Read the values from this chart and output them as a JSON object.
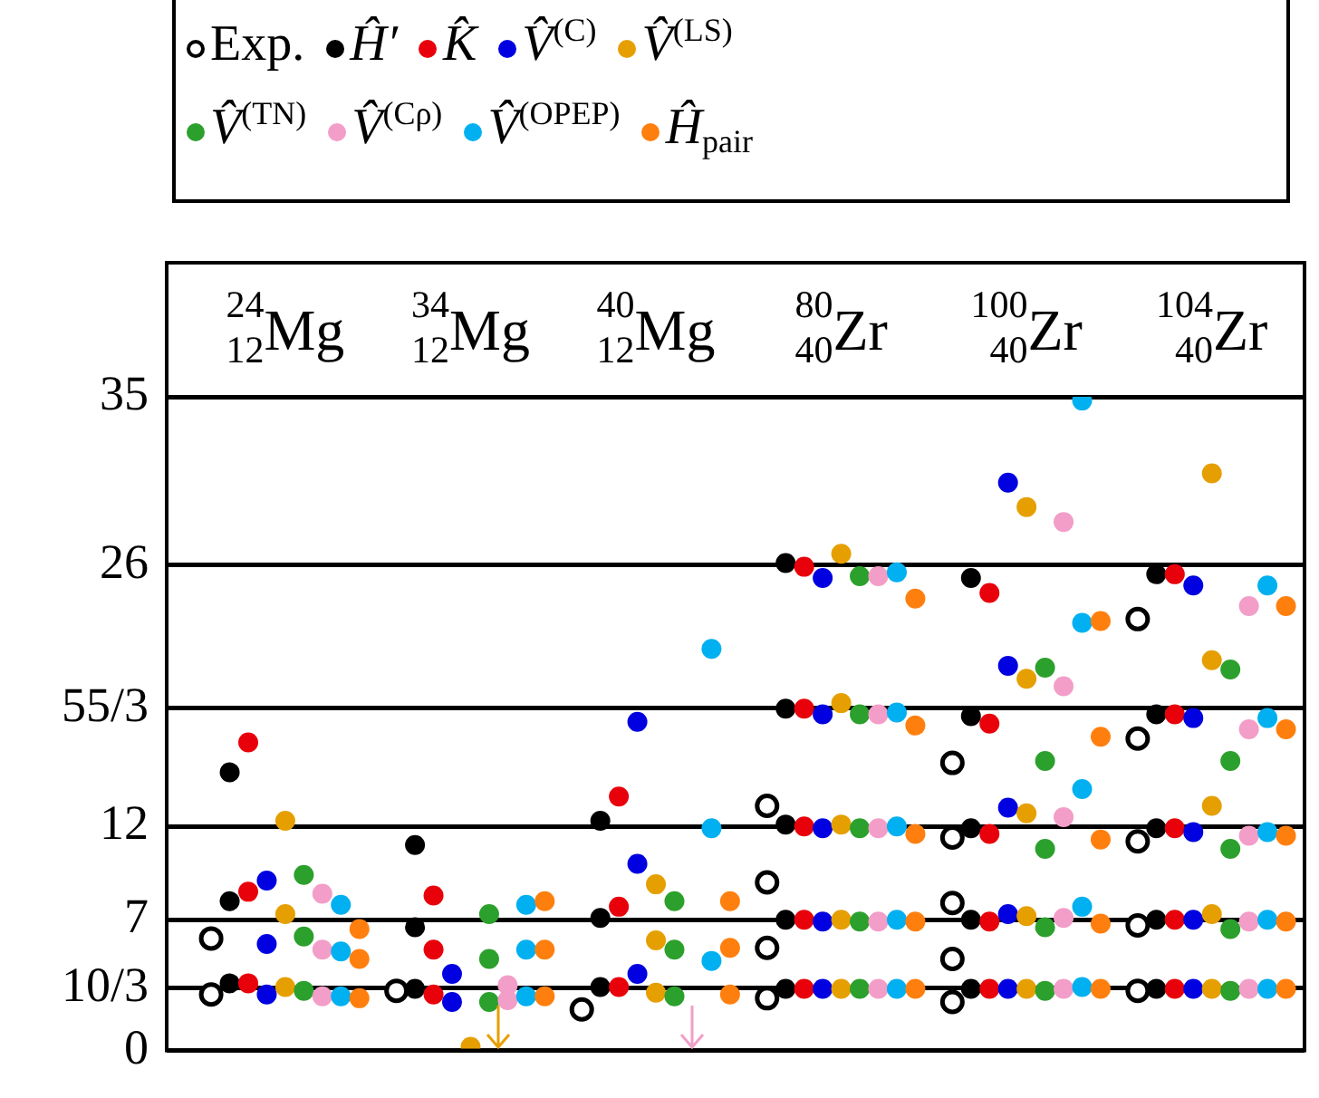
{
  "chart_data": {
    "type": "scatter",
    "legend": "top",
    "grid": "y",
    "marker": "circle",
    "categories": [
      "$^{24}$$_{12}$Mg",
      "$^{34}$$_{12}$Mg",
      "$^{40}$$_{12}$Mg",
      "$^{80}$$_{40}$Zr",
      "$^{100}$$_{40}$Zr",
      "$^{104}$$_{40}$Zr"
    ],
    "ylim": [
      0,
      35
    ],
    "yticks": [
      0,
      {
        "value": 3.333,
        "label": "10/3"
      },
      7,
      12,
      {
        "value": 18.333,
        "label": "55/3"
      },
      26,
      35
    ],
    "series": [
      {
        "name": "Exp.",
        "color": "#000000",
        "values": [
          3.0,
          3.2,
          2.2,
          2.8,
          2.6,
          3.2
        ]
      },
      {
        "color": "#000000",
        "values": [
          6.0,
          null,
          null,
          5.5,
          4.9,
          6.7
        ]
      },
      {
        "color": "#000000",
        "values": [
          null,
          null,
          null,
          9.0,
          7.9,
          11.2
        ]
      },
      {
        "color": "#000000",
        "values": [
          null,
          null,
          null,
          13.1,
          11.4,
          16.7
        ]
      },
      {
        "color": "#000000",
        "values": [
          null,
          null,
          null,
          null,
          15.4,
          23.1
        ]
      },
      {
        "name": "Ĥ′",
        "color": "#000000",
        "values": [
          3.6,
          3.3,
          3.4,
          3.3,
          3.3,
          3.3
        ]
      },
      {
        "color": "#000000",
        "values": [
          8.0,
          6.6,
          7.1,
          7.0,
          7.0,
          7.0
        ]
      },
      {
        "color": "#000000",
        "values": [
          14.9,
          11.0,
          12.3,
          12.1,
          11.9,
          11.9
        ]
      },
      {
        "color": "#000000",
        "values": [
          null,
          null,
          null,
          18.3,
          17.9,
          18.0
        ]
      },
      {
        "color": "#000000",
        "values": [
          null,
          null,
          null,
          26.1,
          25.3,
          25.5
        ]
      },
      {
        "name": "K̂",
        "color": "#e8000b",
        "values": [
          3.6,
          3.0,
          3.4,
          3.3,
          3.3,
          3.3
        ]
      },
      {
        "color": "#e8000b",
        "values": [
          8.5,
          5.4,
          7.7,
          7.0,
          6.9,
          7.0
        ]
      },
      {
        "color": "#e8000b",
        "values": [
          16.5,
          8.3,
          13.6,
          12.0,
          11.6,
          11.9
        ]
      },
      {
        "color": "#e8000b",
        "values": [
          null,
          null,
          null,
          18.3,
          17.5,
          18.0
        ]
      },
      {
        "color": "#e8000b",
        "values": [
          null,
          null,
          null,
          25.9,
          24.5,
          25.5
        ]
      },
      {
        "name": "V̂$^{(C)}$",
        "color": "#0000e0",
        "values": [
          3.0,
          2.6,
          4.1,
          3.3,
          3.3,
          3.3
        ]
      },
      {
        "color": "#0000e0",
        "values": [
          5.7,
          null,
          10.0,
          6.9,
          7.3,
          7.0
        ]
      },
      {
        "color": "#0000e0",
        "values": [
          9.1,
          4.1,
          17.6,
          11.9,
          13.0,
          11.7
        ]
      },
      {
        "color": "#0000e0",
        "values": [
          null,
          null,
          null,
          18.0,
          20.6,
          17.8
        ]
      },
      {
        "color": "#0000e0",
        "values": [
          null,
          null,
          null,
          25.3,
          30.4,
          24.9
        ]
      },
      {
        "name": "V̂$^{(LS)}$",
        "color": "#e69f00",
        "values": [
          3.4,
          0.2,
          3.1,
          3.3,
          3.3,
          3.3
        ]
      },
      {
        "color": "#e69f00",
        "values": [
          7.3,
          null,
          5.9,
          7.0,
          7.2,
          7.3
        ]
      },
      {
        "color": "#e69f00",
        "values": [
          12.3,
          null,
          8.9,
          12.1,
          12.7,
          13.1
        ]
      },
      {
        "color": "#e69f00",
        "values": [
          null,
          null,
          null,
          18.6,
          19.9,
          20.9
        ]
      },
      {
        "color": "#e69f00",
        "values": [
          null,
          null,
          null,
          26.6,
          29.1,
          30.9
        ]
      },
      {
        "name": "V̂$^{(TN)}$",
        "color": "#2ca02c",
        "values": [
          3.2,
          2.6,
          2.9,
          3.3,
          3.2,
          3.2
        ]
      },
      {
        "color": "#2ca02c",
        "values": [
          6.1,
          4.9,
          5.4,
          6.9,
          6.6,
          6.5
        ]
      },
      {
        "color": "#2ca02c",
        "values": [
          9.4,
          7.3,
          8.0,
          11.9,
          10.8,
          10.8
        ]
      },
      {
        "color": "#2ca02c",
        "values": [
          null,
          null,
          null,
          18.0,
          15.5,
          15.5
        ]
      },
      {
        "color": "#2ca02c",
        "values": [
          null,
          null,
          null,
          25.4,
          20.5,
          20.4
        ]
      },
      {
        "name": "V̂$^{(Cρ)}$",
        "color": "#f29ec8",
        "values": [
          2.9,
          2.7,
          null,
          3.3,
          3.3,
          3.3
        ]
      },
      {
        "color": "#f29ec8",
        "values": [
          5.4,
          3.5,
          null,
          6.9,
          7.1,
          6.9
        ]
      },
      {
        "color": "#f29ec8",
        "values": [
          8.4,
          null,
          null,
          11.9,
          12.5,
          11.5
        ]
      },
      {
        "color": "#f29ec8",
        "values": [
          null,
          null,
          null,
          18.0,
          19.5,
          17.2
        ]
      },
      {
        "color": "#f29ec8",
        "values": [
          null,
          null,
          null,
          25.4,
          28.3,
          23.8
        ]
      },
      {
        "name": "V̂$^{(OPEP)}$",
        "color": "#00b0f0",
        "values": [
          2.9,
          2.9,
          4.8,
          3.3,
          3.4,
          3.3
        ]
      },
      {
        "color": "#00b0f0",
        "values": [
          5.3,
          5.4,
          11.9,
          7.0,
          7.7,
          7.0
        ]
      },
      {
        "color": "#00b0f0",
        "values": [
          7.8,
          7.8,
          21.5,
          12.0,
          14.0,
          11.7
        ]
      },
      {
        "color": "#00b0f0",
        "values": [
          null,
          null,
          null,
          18.1,
          22.9,
          17.8
        ]
      },
      {
        "color": "#00b0f0",
        "values": [
          null,
          null,
          null,
          25.6,
          34.8,
          24.9
        ]
      },
      {
        "name": "Ĥ$_{pair}$",
        "color": "#ff7f0e",
        "values": [
          2.8,
          2.9,
          3.0,
          3.3,
          3.3,
          3.3
        ]
      },
      {
        "color": "#ff7f0e",
        "values": [
          4.9,
          5.4,
          5.5,
          6.9,
          6.8,
          6.9
        ]
      },
      {
        "color": "#ff7f0e",
        "values": [
          6.5,
          8.0,
          8.0,
          11.6,
          11.3,
          11.5
        ]
      },
      {
        "color": "#ff7f0e",
        "values": [
          null,
          null,
          null,
          17.4,
          16.8,
          17.2
        ]
      },
      {
        "color": "#ff7f0e",
        "values": [
          null,
          null,
          null,
          24.2,
          23.0,
          23.8
        ]
      }
    ]
  }
}
